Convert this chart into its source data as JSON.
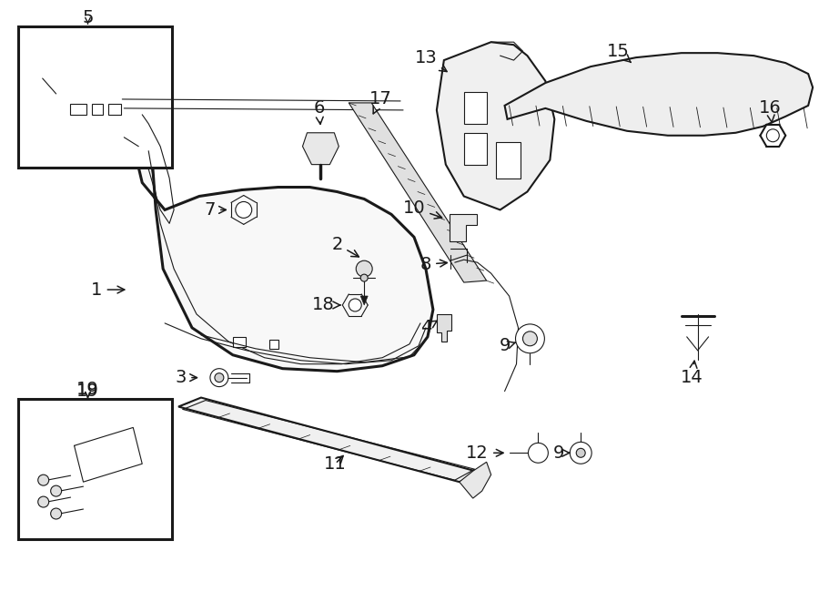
{
  "background_color": "#ffffff",
  "line_color": "#1a1a1a",
  "fig_width": 9.0,
  "fig_height": 6.61,
  "dpi": 100,
  "label_fontsize": 14,
  "label_fontsize_sm": 12,
  "lw_main": 1.5,
  "lw_thick": 2.2,
  "lw_thin": 0.8
}
